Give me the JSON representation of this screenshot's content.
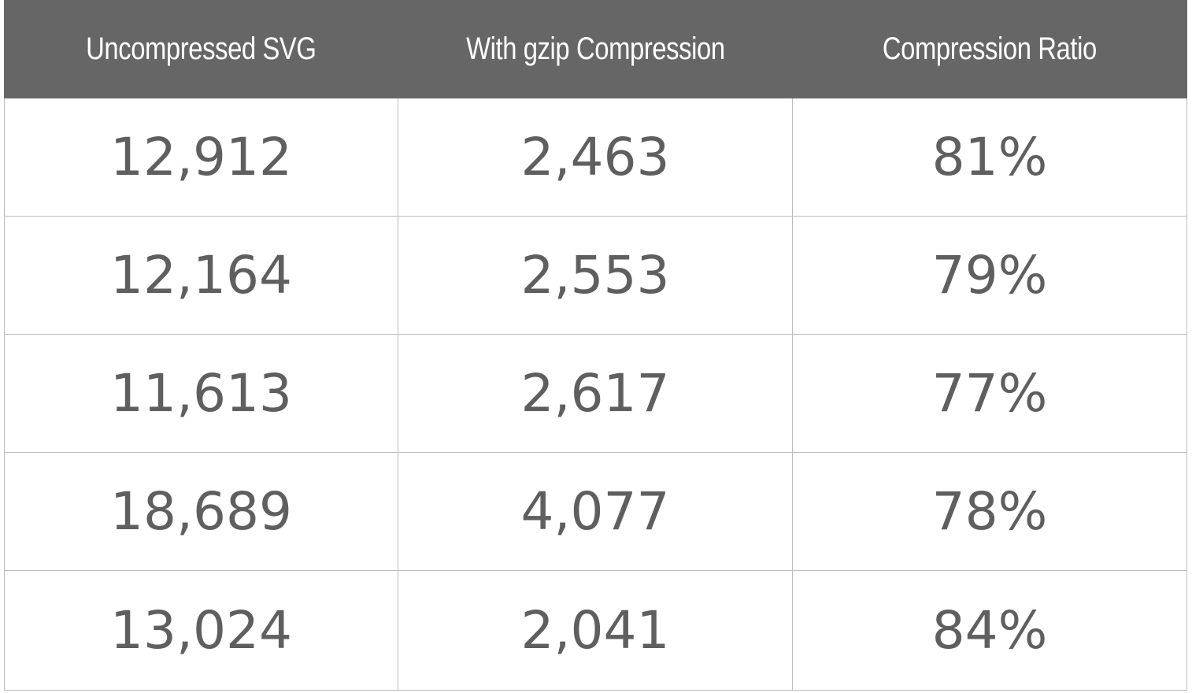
{
  "chart_data": {
    "type": "table",
    "columns": [
      "Uncompressed SVG",
      "With gzip Compression",
      "Compression Ratio"
    ],
    "rows": [
      [
        "12,912",
        "2,463",
        "81%"
      ],
      [
        "12,164",
        "2,553",
        "79%"
      ],
      [
        "11,613",
        "2,617",
        "77%"
      ],
      [
        "18,689",
        "4,077",
        "78%"
      ],
      [
        "13,024",
        "2,041",
        "84%"
      ]
    ]
  },
  "colors": {
    "header_bg": "#666666",
    "header_text": "#ffffff",
    "cell_text": "#5f5f5f",
    "grid": "#bdbdbd"
  }
}
